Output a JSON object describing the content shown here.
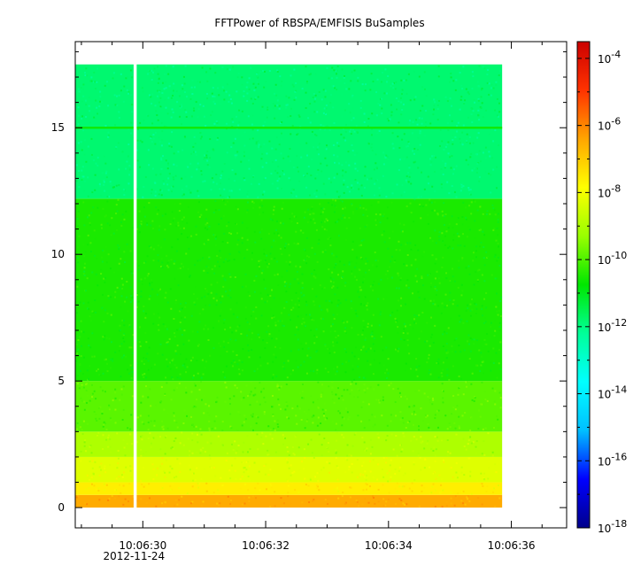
{
  "chart_data": {
    "type": "heatmap",
    "title": "FFTPower of RBSPA/EMFISIS  BuSamples",
    "xlabel": "",
    "ylabel": "",
    "x_range": [
      "10:06:28.9",
      "10:06:36.9"
    ],
    "x_ticks": [
      {
        "label": "10:06:30",
        "sublabel": "2012-11-24",
        "value": "10:06:30"
      },
      {
        "label": "10:06:32",
        "sublabel": "",
        "value": "10:06:32"
      },
      {
        "label": "10:06:34",
        "sublabel": "",
        "value": "10:06:34"
      },
      {
        "label": "10:06:36",
        "sublabel": "",
        "value": "10:06:36"
      }
    ],
    "y_range": [
      -0.8,
      18.4
    ],
    "y_ticks": [
      0,
      5,
      10,
      15
    ],
    "colorbar": {
      "scale": "log",
      "range_exponent": [
        -18,
        -3.5
      ],
      "ticks": [
        {
          "base": "10",
          "exp": "-4",
          "exponent": -4
        },
        {
          "base": "10",
          "exp": "-6",
          "exponent": -6
        },
        {
          "base": "10",
          "exp": "-8",
          "exponent": -8
        },
        {
          "base": "10",
          "exp": "-10",
          "exponent": -10
        },
        {
          "base": "10",
          "exp": "-12",
          "exponent": -12
        },
        {
          "base": "10",
          "exp": "-14",
          "exponent": -14
        },
        {
          "base": "10",
          "exp": "-16",
          "exponent": -16
        },
        {
          "base": "10",
          "exp": "-18",
          "exponent": -18
        }
      ],
      "colors": [
        "#00008b",
        "#0000ff",
        "#00bfff",
        "#00ffff",
        "#00ff99",
        "#00e600",
        "#99ff00",
        "#ffff00",
        "#ffa500",
        "#ff3300",
        "#cc0000"
      ]
    },
    "data_extent": {
      "x_start": "10:06:28.9",
      "x_end": "10:06:35.85",
      "y_min": 0,
      "y_max": 17.5
    },
    "gap": {
      "x_start": "10:06:29.85",
      "x_end": "10:06:29.90"
    },
    "bands": [
      {
        "y_from": 0.0,
        "y_to": 0.5,
        "log_power": -6.5
      },
      {
        "y_from": 0.5,
        "y_to": 1.0,
        "log_power": -7.6
      },
      {
        "y_from": 1.0,
        "y_to": 2.0,
        "log_power": -8.3
      },
      {
        "y_from": 2.0,
        "y_to": 3.0,
        "log_power": -9.0
      },
      {
        "y_from": 3.0,
        "y_to": 5.0,
        "log_power": -9.9
      },
      {
        "y_from": 5.0,
        "y_to": 12.2,
        "log_power": -10.5
      },
      {
        "y_from": 12.2,
        "y_to": 17.5,
        "log_power": -11.8
      }
    ],
    "line_feature": {
      "y": 15.0,
      "log_power": -10.6
    }
  }
}
